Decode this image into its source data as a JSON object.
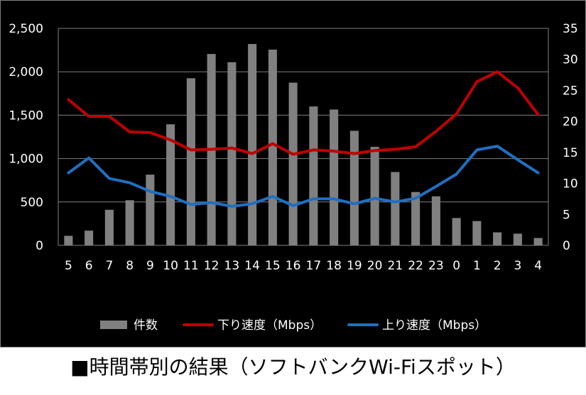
{
  "caption": "■時間帯別の結果（ソフトバンクWi-Fiスポット）",
  "chart_data": {
    "type": "bar",
    "categories": [
      "5",
      "6",
      "7",
      "8",
      "9",
      "10",
      "11",
      "12",
      "13",
      "14",
      "15",
      "16",
      "17",
      "18",
      "19",
      "20",
      "21",
      "22",
      "23",
      "0",
      "1",
      "2",
      "3",
      "4"
    ],
    "series": [
      {
        "name": "件数",
        "type": "bar",
        "axis": "left",
        "color": "#808080",
        "values": [
          110,
          170,
          410,
          520,
          815,
          1395,
          1925,
          2205,
          2110,
          2320,
          2255,
          1875,
          1600,
          1565,
          1320,
          1135,
          845,
          615,
          565,
          315,
          280,
          150,
          135,
          85
        ]
      },
      {
        "name": "下り速度（Mbps）",
        "type": "line",
        "axis": "right",
        "color": "#c00000",
        "values": [
          23.5,
          20.8,
          20.8,
          18.3,
          18.2,
          17.0,
          15.4,
          15.5,
          15.7,
          14.8,
          16.4,
          14.7,
          15.4,
          15.2,
          14.8,
          15.3,
          15.5,
          15.9,
          18.4,
          21.2,
          26.4,
          28.0,
          25.4,
          21.1
        ]
      },
      {
        "name": "上り速度（Mbps）",
        "type": "line",
        "axis": "right",
        "color": "#1f6fc1",
        "values": [
          11.7,
          14.1,
          10.8,
          10.1,
          8.7,
          7.9,
          6.6,
          6.9,
          6.3,
          6.7,
          7.9,
          6.4,
          7.5,
          7.5,
          6.7,
          7.6,
          7.0,
          7.6,
          9.5,
          11.5,
          15.4,
          16.0,
          13.8,
          11.7
        ]
      }
    ],
    "y_left": {
      "ylim": [
        0,
        2500
      ],
      "ticks": [
        0,
        500,
        1000,
        1500,
        2000,
        2500
      ],
      "tick_labels": [
        "0",
        "500",
        "1,000",
        "1,500",
        "2,000",
        "2,500"
      ]
    },
    "y_right": {
      "ylim": [
        0,
        35
      ],
      "ticks": [
        0,
        5,
        10,
        15,
        20,
        25,
        30,
        35
      ],
      "tick_labels": [
        "0",
        "5",
        "10",
        "15",
        "20",
        "25",
        "30",
        "35"
      ]
    },
    "grid": true,
    "legend_position": "bottom",
    "background": "#000000",
    "gridline_color": "#808080",
    "text_color": "#ffffff"
  }
}
